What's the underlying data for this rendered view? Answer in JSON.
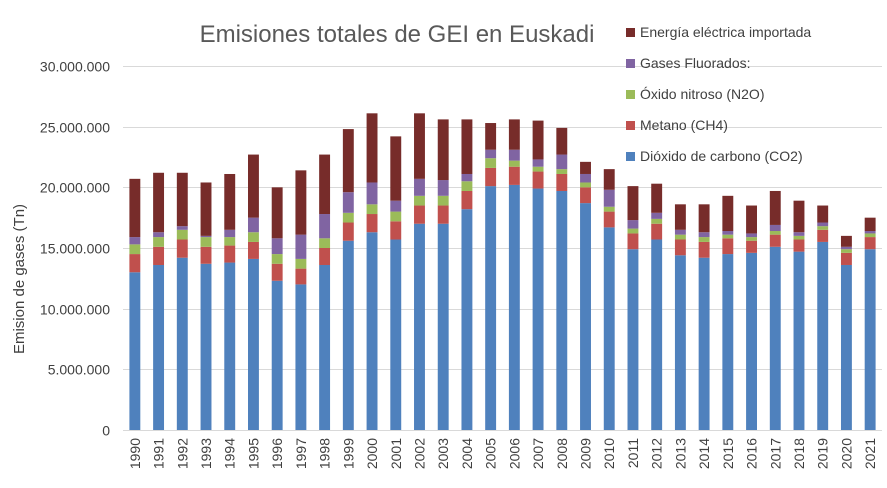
{
  "chart_data": {
    "type": "bar",
    "stacked": true,
    "title": "Emisiones totales de GEI en Euskadi",
    "xlabel": "",
    "ylabel": "Emision de gases (Tn)",
    "ylim": [
      0,
      30000000
    ],
    "yticks": [
      0,
      5000000,
      10000000,
      15000000,
      20000000,
      25000000,
      30000000
    ],
    "ytick_labels": [
      "0",
      "5.000.000",
      "10.000.000",
      "15.000.000",
      "20.000.000",
      "25.000.000",
      "30.000.000"
    ],
    "grid": true,
    "legend_position": "top-right",
    "categories": [
      "1990",
      "1991",
      "1992",
      "1993",
      "1994",
      "1995",
      "1996",
      "1997",
      "1998",
      "1999",
      "2000",
      "2001",
      "2002",
      "2003",
      "2004",
      "2005",
      "2006",
      "2007",
      "2008",
      "2009",
      "2010",
      "2011",
      "2012",
      "2013",
      "2014",
      "2015",
      "2016",
      "2017",
      "2018",
      "2019",
      "2020",
      "2021"
    ],
    "series": [
      {
        "name": "Dióxido de carbono (CO2)",
        "color": "#4f81bd",
        "values": [
          13000000,
          13600000,
          14200000,
          13700000,
          13800000,
          14100000,
          12300000,
          12000000,
          13600000,
          15600000,
          16300000,
          15700000,
          17000000,
          17000000,
          18200000,
          20100000,
          20200000,
          19900000,
          19700000,
          18700000,
          16700000,
          14900000,
          15700000,
          14400000,
          14200000,
          14500000,
          14600000,
          15100000,
          14700000,
          15500000,
          13600000,
          14900000
        ]
      },
      {
        "name": "Metano (CH4)",
        "color": "#c0504d",
        "values": [
          1500000,
          1500000,
          1500000,
          1400000,
          1400000,
          1400000,
          1400000,
          1300000,
          1400000,
          1500000,
          1500000,
          1500000,
          1500000,
          1500000,
          1500000,
          1500000,
          1500000,
          1400000,
          1400000,
          1300000,
          1300000,
          1300000,
          1300000,
          1300000,
          1300000,
          1300000,
          1000000,
          1000000,
          1000000,
          1000000,
          1000000,
          1000000
        ]
      },
      {
        "name": "Óxido nitroso (N2O)",
        "color": "#9bbb59",
        "values": [
          800000,
          800000,
          800000,
          800000,
          700000,
          800000,
          800000,
          800000,
          800000,
          800000,
          800000,
          800000,
          800000,
          800000,
          800000,
          800000,
          500000,
          400000,
          400000,
          400000,
          400000,
          400000,
          400000,
          400000,
          400000,
          300000,
          300000,
          300000,
          300000,
          300000,
          300000,
          300000
        ]
      },
      {
        "name": "Gases Fluorados:",
        "color": "#8064a2",
        "values": [
          600000,
          400000,
          300000,
          100000,
          600000,
          1200000,
          1300000,
          2000000,
          2000000,
          1700000,
          1800000,
          900000,
          1400000,
          1300000,
          600000,
          700000,
          900000,
          600000,
          1200000,
          700000,
          1400000,
          700000,
          500000,
          400000,
          400000,
          300000,
          300000,
          500000,
          300000,
          300000,
          200000,
          200000
        ]
      },
      {
        "name": "Energía eléctrica importada",
        "color": "#772c2a",
        "values": [
          4800000,
          4900000,
          4400000,
          4400000,
          4600000,
          5200000,
          4200000,
          5300000,
          4900000,
          5200000,
          5700000,
          5300000,
          5400000,
          5000000,
          4500000,
          2200000,
          2500000,
          3200000,
          2200000,
          1000000,
          1700000,
          2800000,
          2400000,
          2100000,
          2300000,
          2900000,
          2300000,
          2800000,
          2600000,
          1400000,
          900000,
          1100000
        ]
      }
    ]
  }
}
